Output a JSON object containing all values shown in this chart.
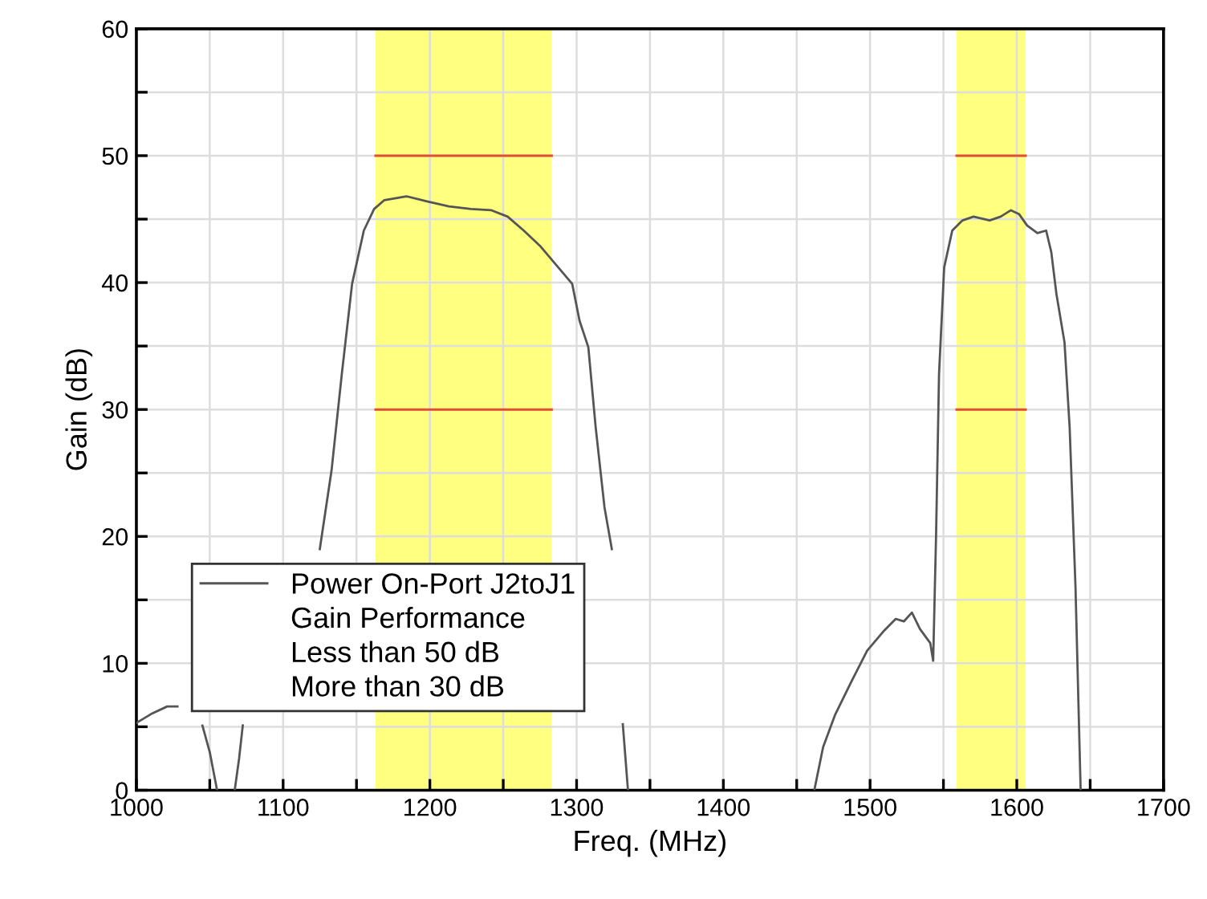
{
  "chart_data": {
    "type": "line",
    "xlabel": "Freq. (MHz)",
    "ylabel": "Gain (dB)",
    "xlim": [
      1000,
      1700
    ],
    "ylim": [
      0,
      60
    ],
    "xticks": [
      1000,
      {
        "value": 1050,
        "label": null
      },
      1100,
      {
        "value": 1150,
        "label": null
      },
      1200,
      {
        "value": 1250,
        "label": null
      },
      1300,
      {
        "value": 1350,
        "label": null
      },
      1400,
      {
        "value": 1450,
        "label": null
      },
      1500,
      {
        "value": 1550,
        "label": null
      },
      1600,
      {
        "value": 1650,
        "label": null
      },
      1700
    ],
    "yticks": [
      0,
      {
        "value": 5,
        "label": null
      },
      10,
      {
        "value": 15,
        "label": null
      },
      20,
      {
        "value": 25,
        "label": null
      },
      30,
      {
        "value": 35,
        "label": null
      },
      40,
      {
        "value": 45,
        "label": null
      },
      50,
      {
        "value": 55,
        "label": null
      },
      60
    ],
    "grid": true,
    "legend": "bottom left",
    "annotations": [
      "Gain Performance",
      "Less than 50 dB",
      "More than 30 dB"
    ],
    "bands": [
      {
        "axis": "x",
        "from": 1163,
        "to": 1283,
        "color": "#ffff80"
      },
      {
        "axis": "x",
        "from": 1559,
        "to": 1606,
        "color": "#ffff80"
      }
    ],
    "series": [
      {
        "name": "Power On-Port J2toJ1",
        "color": "#555555",
        "x": [
          1000,
          1010,
          1021,
          1028,
          1036,
          1045,
          1050,
          1055,
          1061,
          1067,
          1070,
          1072.5,
          1100,
          1125,
          1133,
          1140,
          1147,
          1155,
          1162,
          1169,
          1184,
          1198,
          1213,
          1228,
          1242,
          1253,
          1264,
          1275,
          1286,
          1297,
          1302,
          1308,
          1313,
          1319,
          1324,
          1328,
          1331.5,
          1335,
          1400,
          1462,
          1468,
          1476,
          1487,
          1498,
          1509,
          1517.5,
          1523,
          1528.5,
          1534,
          1541,
          1543,
          1545,
          1547,
          1550.5,
          1556,
          1563,
          1570.5,
          1581.5,
          1589,
          1596,
          1601.5,
          1607,
          1614,
          1620,
          1623.5,
          1627,
          1632.5,
          1636,
          1640,
          1643.5
        ],
        "values": [
          5.3,
          6.0,
          6.6,
          6.6,
          null,
          5.1,
          3.0,
          0,
          null,
          0,
          2.5,
          5.1,
          null,
          19,
          25.2,
          32.8,
          39.9,
          44.1,
          45.8,
          46.5,
          46.8,
          46.4,
          46.0,
          45.8,
          45.7,
          45.2,
          44.1,
          42.9,
          41.4,
          39.9,
          37.0,
          34.9,
          28.6,
          22.3,
          19,
          null,
          5.2,
          0,
          null,
          0,
          3.4,
          5.9,
          8.5,
          11.0,
          12.5,
          13.5,
          13.3,
          14.0,
          12.7,
          11.6,
          10.2,
          20.2,
          32.8,
          41.2,
          44.1,
          44.9,
          45.2,
          44.9,
          45.2,
          45.7,
          45.4,
          44.5,
          43.9,
          44.1,
          42.4,
          39.1,
          35.3,
          28.6,
          16.0,
          0
        ]
      },
      {
        "color": "#e05030",
        "x": [
          1163,
          1283,
          1420,
          1559,
          1606
        ],
        "values": [
          50,
          50,
          null,
          50,
          50
        ]
      },
      {
        "color": "#e05030",
        "x": [
          1163,
          1283,
          1420,
          1559,
          1606
        ],
        "values": [
          30,
          30,
          null,
          30,
          30
        ]
      }
    ]
  }
}
